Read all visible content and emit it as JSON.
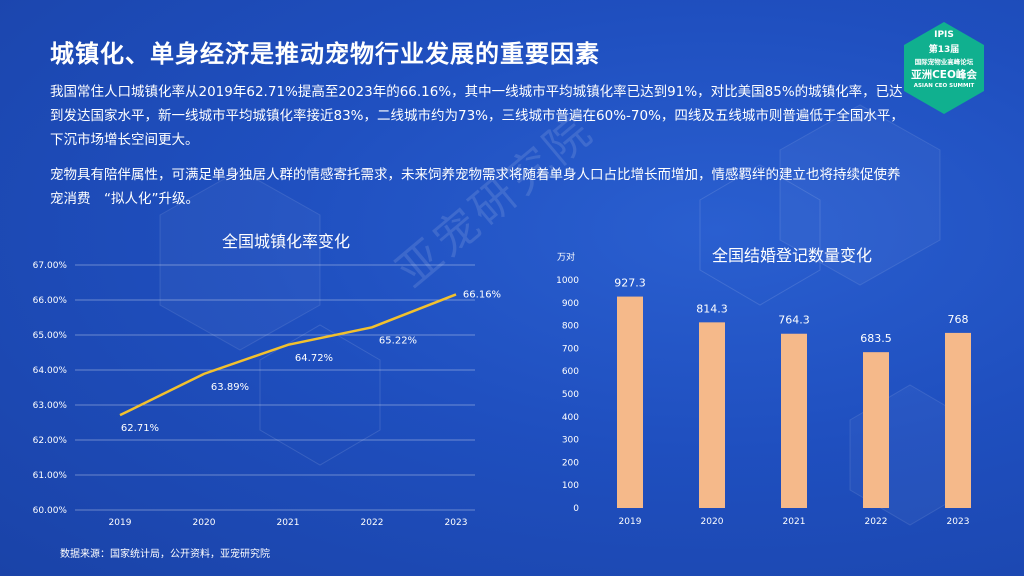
{
  "title": "城镇化、单身经济是推动宠物行业发展的重要因素",
  "paragraphs": [
    "我国常住人口城镇化率从2019年62.71%提高至2023年的66.16%，其中一线城市平均城镇化率已达到91%，对比美国85%的城镇化率，已达到发达国家水平，新一线城市平均城镇化率接近83%，二线城市约为73%，三线城市普遍在60%-70%，四线及五线城市则普遍低于全国水平，下沉市场增长空间更大。",
    "宠物具有陪伴属性，可满足单身独居人群的情感寄托需求，未来饲养宠物需求将随着单身人口占比增长而增加，情感羁绊的建立也将持续促使养宠消费　“拟人化”升级。"
  ],
  "logo": {
    "line1": "IPIS",
    "line2": "第13届",
    "line3": "国际宠物业高峰论坛",
    "line4": "亚洲CEO峰会",
    "line5": "ASIAN CEO SUMMIT"
  },
  "watermark": "亚宠研究院",
  "source": "数据来源：国家统计局，公开资料，亚宠研究院",
  "colors": {
    "line": "#f2c12e",
    "bar": "#f5b98a",
    "background": "#1f4fbf"
  },
  "chart_data": [
    {
      "type": "line",
      "title": "全国城镇化率变化",
      "categories": [
        "2019",
        "2020",
        "2021",
        "2022",
        "2023"
      ],
      "values": [
        62.71,
        63.89,
        64.72,
        65.22,
        66.16
      ],
      "value_labels": [
        "62.71%",
        "63.89%",
        "64.72%",
        "65.22%",
        "66.16%"
      ],
      "ylim": [
        60,
        67
      ],
      "yticks": [
        "60.00%",
        "61.00%",
        "62.00%",
        "63.00%",
        "64.00%",
        "65.00%",
        "66.00%",
        "67.00%"
      ],
      "grid": true
    },
    {
      "type": "bar",
      "title": "全国结婚登记数量变化",
      "ylabel": "万对",
      "categories": [
        "2019",
        "2020",
        "2021",
        "2022",
        "2023"
      ],
      "values": [
        927.3,
        814.3,
        764.3,
        683.5,
        768
      ],
      "value_labels": [
        "927.3",
        "814.3",
        "764.3",
        "683.5",
        "768"
      ],
      "ylim": [
        0,
        1000
      ],
      "yticks": [
        "0",
        "100",
        "200",
        "300",
        "400",
        "500",
        "600",
        "700",
        "800",
        "900",
        "1000"
      ],
      "grid": false
    }
  ]
}
